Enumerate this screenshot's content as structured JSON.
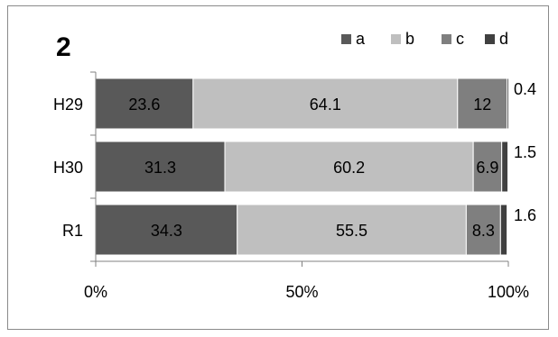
{
  "chart_data": {
    "type": "bar",
    "orientation": "horizontal",
    "stacked": "percent",
    "title": "2",
    "categories": [
      "H29",
      "H30",
      "R1"
    ],
    "series": [
      {
        "name": "a",
        "values": [
          23.6,
          31.3,
          34.3
        ],
        "color": "#595959"
      },
      {
        "name": "b",
        "values": [
          64.1,
          60.2,
          55.5
        ],
        "color": "#bfbfbf"
      },
      {
        "name": "c",
        "values": [
          12,
          6.9,
          8.3
        ],
        "color": "#7f7f7f"
      },
      {
        "name": "d",
        "values": [
          0.4,
          1.5,
          1.6
        ],
        "color": "#404040"
      }
    ],
    "xlim": [
      0,
      100
    ],
    "x_ticks": [
      "0%",
      "50%",
      "100%"
    ],
    "legend_position": "top-right",
    "grid": false
  }
}
